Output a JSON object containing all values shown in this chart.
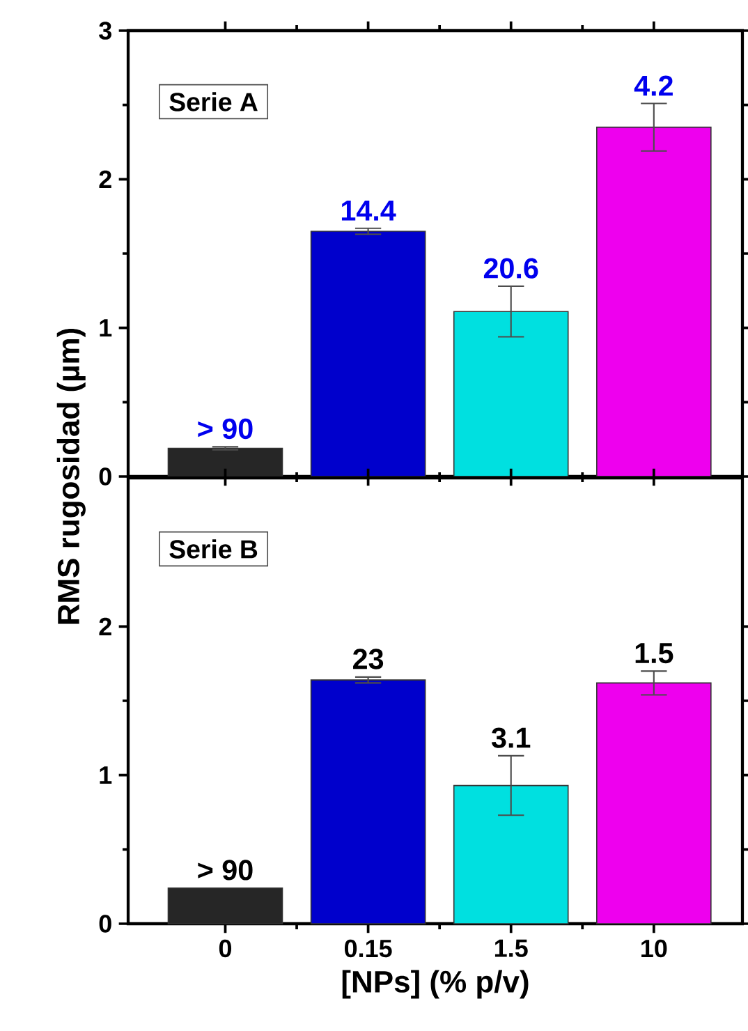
{
  "chart_data": [
    {
      "type": "bar",
      "ylabel": "RMS rugosidad (µm)",
      "categories": [
        "0",
        "0.15",
        "1.5",
        "10"
      ],
      "tick_labels": "y",
      "values": [
        0.19,
        1.65,
        1.11,
        2.35
      ],
      "errors": [
        0.01,
        0.02,
        0.17,
        0.16
      ],
      "colors": [
        "#262626",
        "#0000cc",
        "#00e0e0",
        "#ee00ee"
      ],
      "annotations": [
        "Serie A",
        {
          "text": "> 90",
          "x": "0",
          "y": 0.2
        },
        {
          "text": "14.4",
          "x": "0.15",
          "y": 1.67
        },
        {
          "text": "20.6",
          "x": "1.5",
          "y": 1.28
        },
        {
          "text": "4.2",
          "x": "10",
          "y": 2.51
        }
      ],
      "ylim": [
        0,
        3
      ],
      "yticks": [
        0,
        1,
        2,
        3
      ]
    },
    {
      "type": "bar",
      "xlabel": "[NPs] (% p/v)",
      "categories": [
        "0",
        "0.15",
        "1.5",
        "10"
      ],
      "values": [
        0.24,
        1.64,
        0.93,
        1.62
      ],
      "errors": [
        null,
        0.02,
        0.2,
        0.08
      ],
      "colors": [
        "#262626",
        "#0000cc",
        "#00e0e0",
        "#ee00ee"
      ],
      "annotations": [
        "Serie B",
        {
          "text": "> 90",
          "x": "0",
          "y": 0.24
        },
        {
          "text": "23",
          "x": "0.15",
          "y": 1.66
        },
        {
          "text": "3.1",
          "x": "1.5",
          "y": 1.13
        },
        {
          "text": "1.5",
          "x": "10",
          "y": 1.7
        }
      ],
      "ylim": [
        0,
        3
      ],
      "yticks": [
        0,
        1,
        2
      ]
    }
  ]
}
